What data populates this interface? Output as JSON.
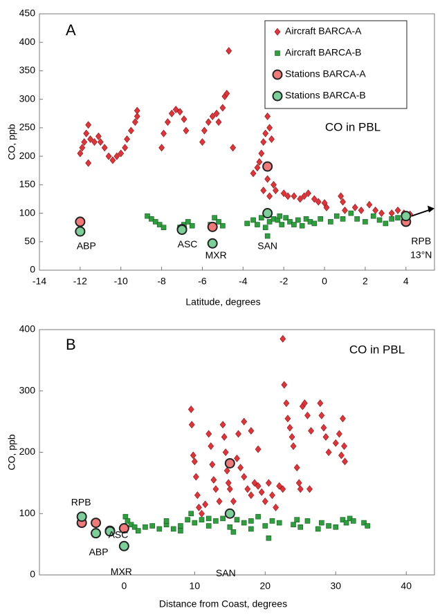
{
  "chart_data": [
    {
      "type": "scatter",
      "panel": "A",
      "annotation": "CO in PBL",
      "x_label": "Latitude, degrees",
      "y_label": "CO, ppb",
      "xlim": [
        -14,
        5.4
      ],
      "ylim": [
        0,
        450
      ],
      "xticks": [
        -14,
        -12,
        -10,
        -8,
        -6,
        -4,
        -2,
        0,
        2,
        4
      ],
      "yticks": [
        0,
        50,
        100,
        150,
        200,
        250,
        300,
        350,
        400,
        450
      ],
      "legend": "upper right",
      "station_labels": [
        "ABP",
        "ASC",
        "MXR",
        "SAN",
        "RPB"
      ],
      "extra_labels": [
        "13°N"
      ],
      "series": [
        {
          "name": "Aircraft BARCA-A",
          "color": "#e0343a",
          "marker": "diamond",
          "x": [
            -12,
            -11.9,
            -11.8,
            -11.7,
            -11.6,
            -11.6,
            -11.5,
            -11.3,
            -11.1,
            -11,
            -10.8,
            -10.6,
            -10.4,
            -10.2,
            -10,
            -9.8,
            -9.7,
            -9.5,
            -9.3,
            -9.2,
            -9.2,
            -8,
            -7.9,
            -7.7,
            -7.5,
            -7.3,
            -7.1,
            -6.9,
            -6.8,
            -6,
            -5.9,
            -5.7,
            -5.5,
            -5.3,
            -5.2,
            -5,
            -4.9,
            -4.8,
            -4.7,
            -4.5,
            -3.5,
            -3.3,
            -3.2,
            -3.1,
            -3,
            -2.9,
            -2.8,
            -2.7,
            -2.6,
            -2.8,
            -3,
            -2.7,
            -2.5,
            -2.4,
            -2,
            -1.8,
            -1.5,
            -1.2,
            -1,
            -0.8,
            -0.5,
            -0.3,
            0,
            0.1,
            0.8,
            0.9,
            1,
            1.5,
            1.8,
            2.2,
            2.5,
            2.8,
            3.3,
            3.6,
            3.9,
            4.2
          ],
          "y": [
            205,
            215,
            225,
            240,
            255,
            188,
            230,
            225,
            235,
            225,
            215,
            200,
            193,
            200,
            205,
            215,
            230,
            245,
            260,
            280,
            270,
            215,
            240,
            260,
            275,
            282,
            278,
            265,
            245,
            225,
            245,
            260,
            270,
            275,
            260,
            285,
            305,
            310,
            385,
            215,
            170,
            180,
            190,
            205,
            225,
            240,
            270,
            250,
            230,
            160,
            140,
            130,
            150,
            140,
            135,
            130,
            130,
            125,
            130,
            135,
            125,
            120,
            118,
            110,
            130,
            120,
            105,
            110,
            105,
            115,
            105,
            100,
            100,
            105,
            100,
            98
          ]
        },
        {
          "name": "Aircraft BARCA-B",
          "color": "#2e9e3e",
          "marker": "square",
          "x": [
            -8.7,
            -8.5,
            -8.3,
            -8.1,
            -7.9,
            -7.1,
            -6.9,
            -6.7,
            -6.5,
            -5.6,
            -5.4,
            -5.2,
            -5,
            -3.8,
            -3.5,
            -3.3,
            -3.1,
            -2.9,
            -2.7,
            -2.5,
            -2.3,
            -2.1,
            -1.9,
            -1.7,
            -1.5,
            -1.3,
            -1.1,
            -0.9,
            -0.7,
            -0.5,
            -0.2,
            0.3,
            0.6,
            0.9,
            1.3,
            1.6,
            2,
            2.4,
            2.7,
            3,
            3.3,
            3.6,
            3.9,
            -2.8,
            -2.2
          ],
          "y": [
            95,
            90,
            85,
            80,
            75,
            75,
            80,
            85,
            78,
            80,
            92,
            85,
            78,
            82,
            88,
            80,
            92,
            75,
            85,
            90,
            88,
            80,
            92,
            85,
            80,
            88,
            78,
            90,
            85,
            82,
            90,
            85,
            95,
            90,
            100,
            90,
            85,
            95,
            88,
            82,
            90,
            92,
            85,
            60,
            95
          ]
        },
        {
          "name": "Stations BARCA-A",
          "color": "#f07a7a",
          "marker": "circle",
          "x": [
            -12,
            -7,
            -5.5,
            -2.8,
            4
          ],
          "y": [
            85,
            72,
            76,
            182,
            85
          ]
        },
        {
          "name": "Stations BARCA-B",
          "color": "#7ccf98",
          "marker": "circle",
          "x": [
            -12,
            -7,
            -5.5,
            -2.8,
            4
          ],
          "y": [
            68,
            71,
            47,
            100,
            95
          ]
        }
      ]
    },
    {
      "type": "scatter",
      "panel": "B",
      "annotation": "CO in PBL",
      "x_label": "Distance from Coast, degrees",
      "y_label": "CO, ppb",
      "xlim": [
        -12,
        44
      ],
      "ylim": [
        0,
        400
      ],
      "xticks": [
        0,
        10,
        20,
        30,
        40
      ],
      "yticks": [
        0,
        100,
        200,
        300,
        400
      ],
      "station_labels": [
        "ABP",
        "ASC",
        "MXR",
        "SAN",
        "RPB"
      ],
      "series": [
        {
          "color": "#e0343a",
          "marker": "diamond",
          "x": [
            9.5,
            9.6,
            9.8,
            10,
            10.2,
            10.4,
            10.6,
            11,
            11.5,
            12,
            12.3,
            12.5,
            12.7,
            13,
            13.5,
            14,
            14.2,
            14.4,
            14.6,
            14.8,
            15,
            15.5,
            16,
            16.5,
            17,
            17.5,
            18,
            18.5,
            19,
            19.5,
            20,
            20.5,
            21,
            21.5,
            22,
            22.5,
            22.5,
            22.7,
            23,
            23.2,
            23.5,
            23.8,
            24,
            24.5,
            25,
            25.3,
            25.6,
            26,
            26.5,
            27.8,
            28,
            28.3,
            28.6,
            29,
            30,
            30.5,
            30.8,
            31,
            31.2,
            31.3,
            17,
            16.2,
            18,
            19,
            24.8,
            26.3
          ],
          "y": [
            270,
            245,
            195,
            185,
            160,
            130,
            110,
            100,
            115,
            230,
            210,
            180,
            155,
            140,
            120,
            245,
            225,
            200,
            170,
            150,
            140,
            120,
            190,
            175,
            160,
            140,
            130,
            150,
            145,
            135,
            120,
            150,
            130,
            110,
            145,
            140,
            385,
            310,
            280,
            255,
            240,
            225,
            210,
            175,
            140,
            275,
            280,
            260,
            235,
            280,
            260,
            240,
            225,
            200,
            215,
            230,
            195,
            255,
            210,
            185,
            250,
            230,
            235,
            205,
            150,
            140
          ]
        },
        {
          "color": "#2e9e3e",
          "marker": "square",
          "x": [
            0.2,
            0.5,
            1,
            1.5,
            2,
            3,
            4,
            5,
            6,
            7,
            8,
            9,
            9.5,
            10,
            11,
            12,
            13,
            14,
            15,
            15.5,
            16,
            17,
            18,
            19,
            20,
            20.5,
            21,
            22,
            24,
            24.5,
            25,
            26,
            27.5,
            28,
            29,
            30,
            31,
            31.5,
            32,
            32.5,
            34,
            34.5,
            6,
            8,
            12,
            18
          ],
          "y": [
            95,
            88,
            82,
            78,
            72,
            78,
            80,
            75,
            82,
            75,
            80,
            90,
            100,
            85,
            90,
            80,
            88,
            92,
            78,
            70,
            90,
            85,
            88,
            95,
            80,
            60,
            88,
            85,
            82,
            90,
            78,
            88,
            75,
            85,
            80,
            78,
            90,
            85,
            92,
            88,
            85,
            80,
            88,
            72,
            92,
            75
          ]
        },
        {
          "color": "#f07a7a",
          "marker": "circle",
          "x": [
            -4,
            -2,
            0,
            15,
            -6
          ],
          "y": [
            85,
            72,
            76,
            182,
            85
          ]
        },
        {
          "color": "#7ccf98",
          "marker": "circle",
          "x": [
            -4,
            -2,
            0,
            15,
            -6
          ],
          "y": [
            68,
            71,
            47,
            100,
            95
          ]
        }
      ]
    }
  ]
}
